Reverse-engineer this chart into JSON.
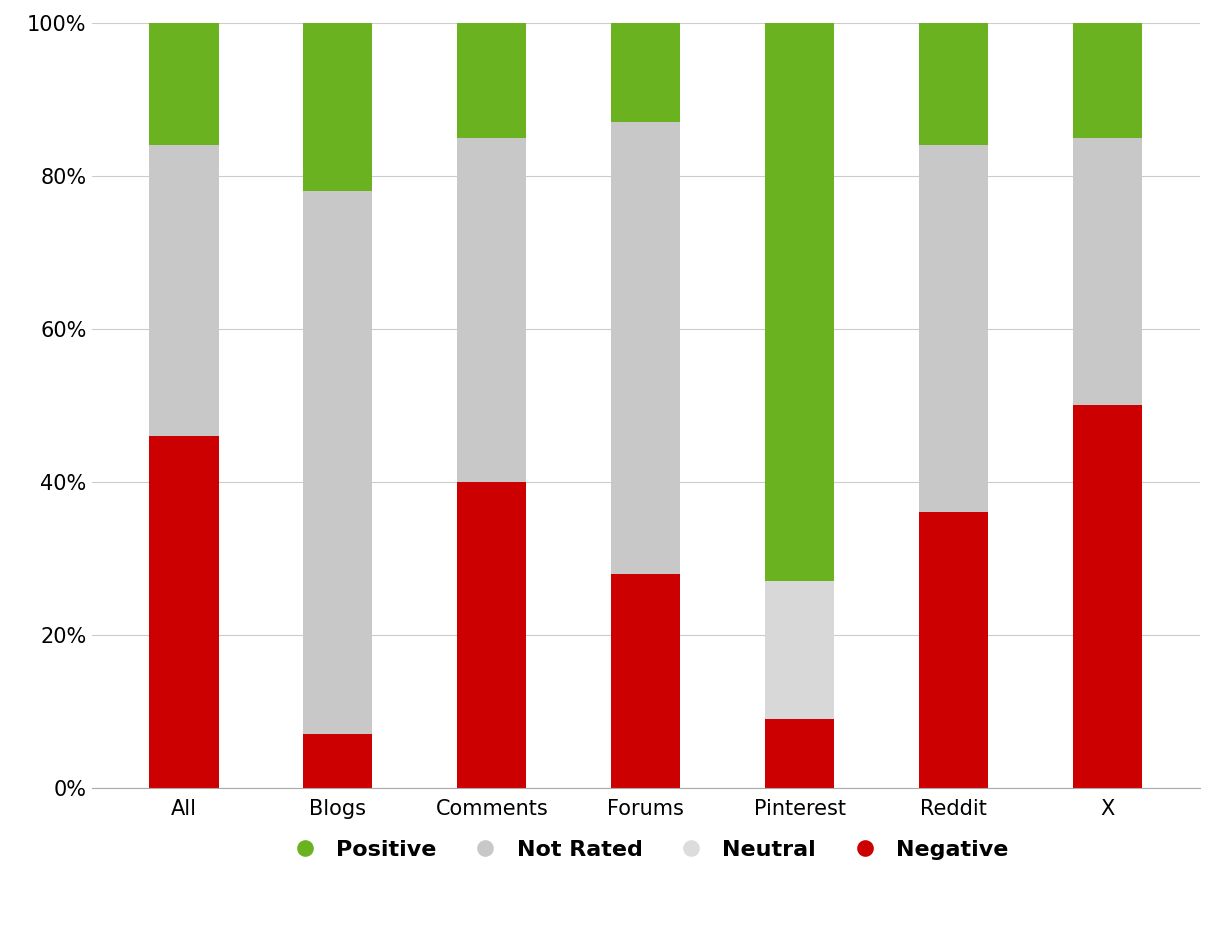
{
  "categories": [
    "All",
    "Blogs",
    "Comments",
    "Forums",
    "Pinterest",
    "Reddit",
    "X"
  ],
  "negative": [
    0.46,
    0.07,
    0.4,
    0.28,
    0.09,
    0.36,
    0.5
  ],
  "neutral": [
    0.0,
    0.0,
    0.0,
    0.0,
    0.18,
    0.0,
    0.0
  ],
  "not_rated": [
    0.38,
    0.71,
    0.45,
    0.59,
    0.0,
    0.48,
    0.35
  ],
  "positive": [
    0.16,
    0.22,
    0.15,
    0.13,
    0.73,
    0.16,
    0.15
  ],
  "color_negative": "#cc0000",
  "color_neutral": "#d8d8d8",
  "color_not_rated": "#c8c8c8",
  "color_positive": "#6ab220",
  "ylim": [
    0,
    1.0
  ],
  "yticks": [
    0.0,
    0.2,
    0.4,
    0.6,
    0.8,
    1.0
  ],
  "yticklabels": [
    "0%",
    "20%",
    "40%",
    "60%",
    "80%",
    "100%"
  ],
  "legend_labels": [
    "Positive",
    "Not Rated",
    "Neutral",
    "Negative"
  ],
  "legend_colors": [
    "#6ab220",
    "#c8c8c8",
    "#dcdcdc",
    "#cc0000"
  ],
  "background_color": "#ffffff",
  "bar_width": 0.45
}
